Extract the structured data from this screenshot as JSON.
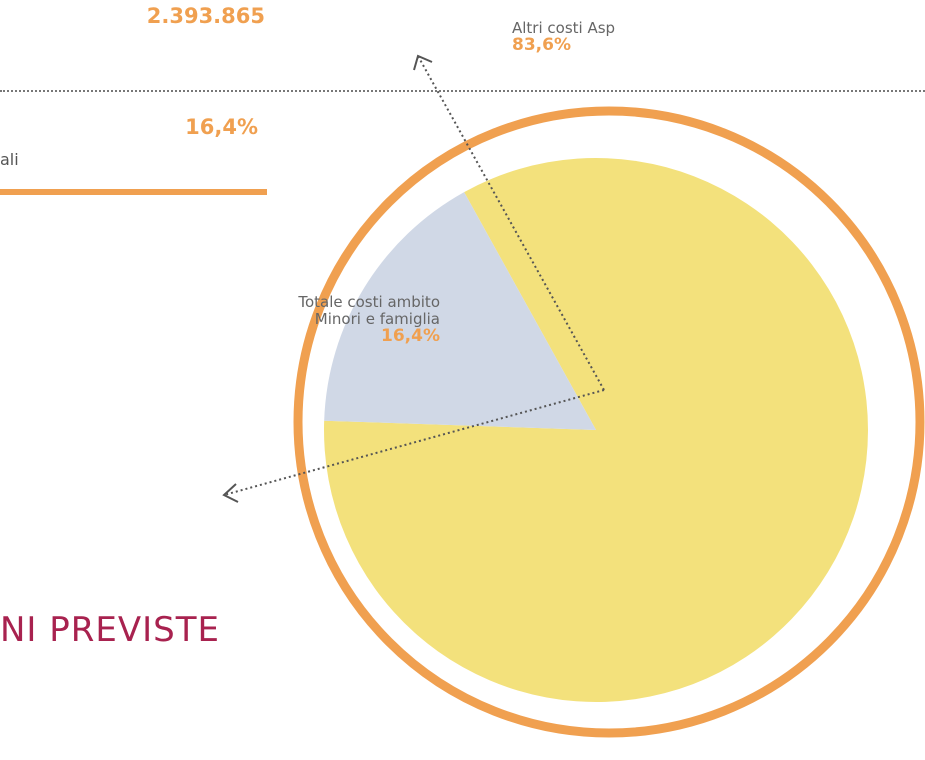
{
  "document": {
    "total": "2.393.865",
    "share": "16,4%",
    "label_fragment": "ali",
    "heading_fragment": "NI PREVISTE"
  },
  "chart_data": {
    "type": "pie",
    "categories": [
      "Altri costi Asp",
      "Totale costi ambito Minori e famiglia"
    ],
    "values": [
      83.6,
      16.4
    ],
    "value_labels": [
      "83,6%",
      "16,4%"
    ],
    "colors": [
      "#f3e17c",
      "#d0d8e6"
    ]
  }
}
